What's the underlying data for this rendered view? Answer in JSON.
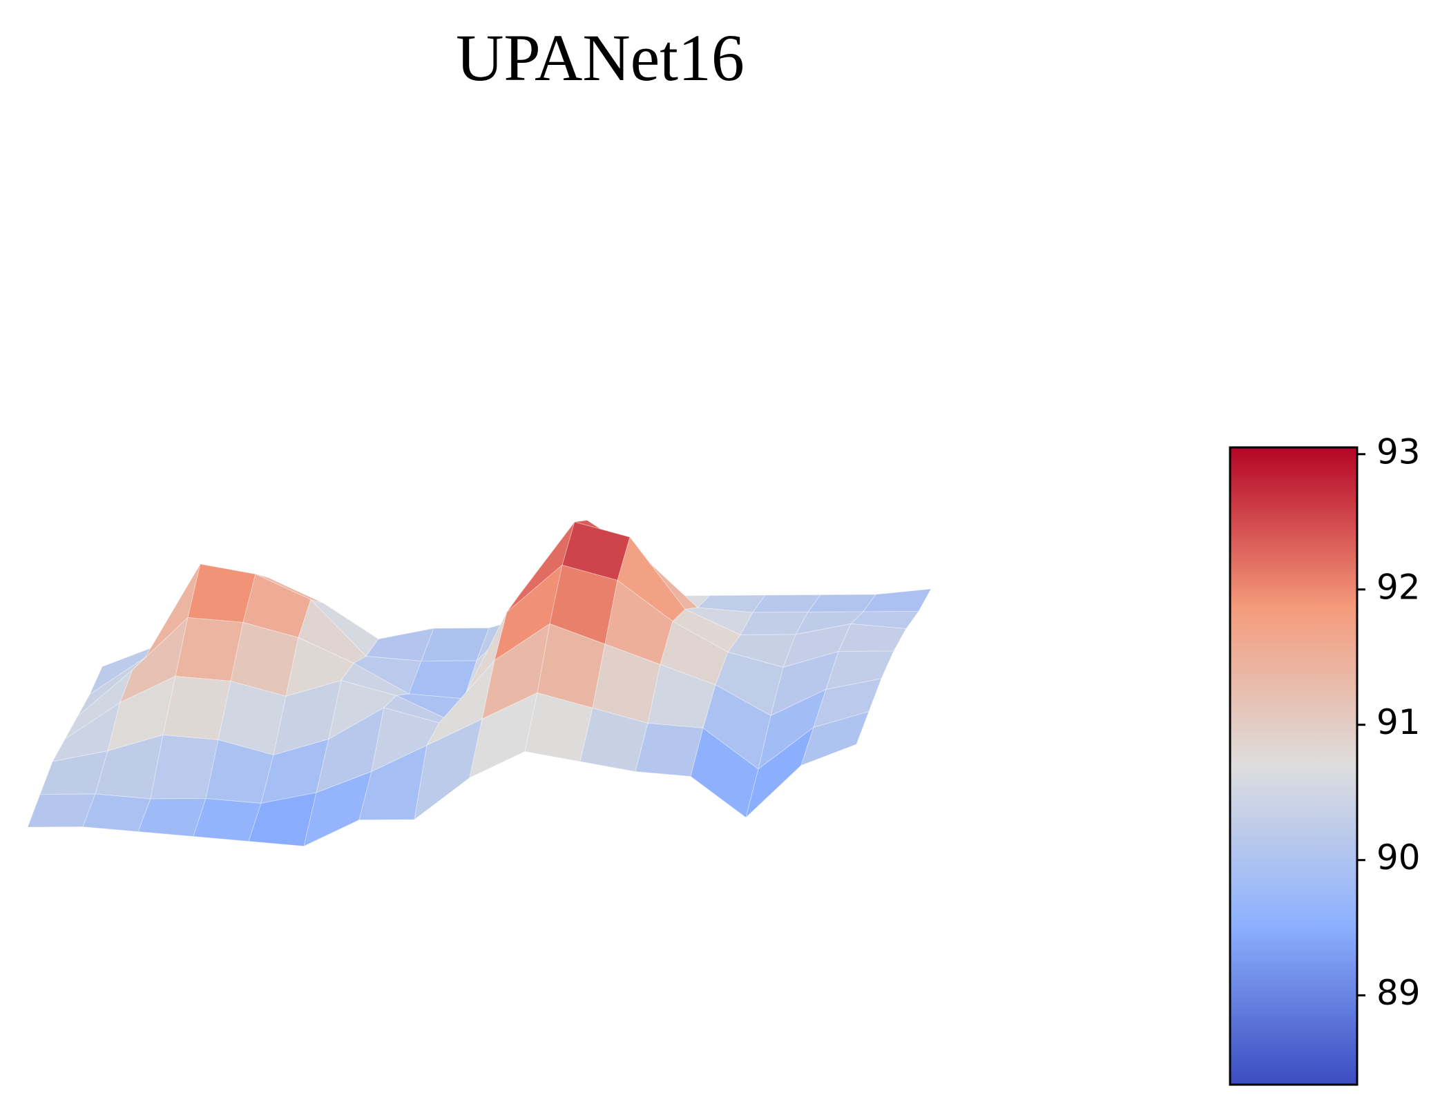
{
  "chart_data": {
    "type": "surface",
    "title": "UPANet16",
    "colormap": "coolwarm",
    "z": [
      [
        90.1,
        90.0,
        89.8,
        89.6,
        89.4,
        89.2,
        89.6,
        89.5,
        90.2,
        90.6,
        90.3,
        90.0,
        89.8,
        88.9,
        89.8,
        90.1
      ],
      [
        90.2,
        90.1,
        89.9,
        89.8,
        89.6,
        89.7,
        90.0,
        90.4,
        90.8,
        91.2,
        90.8,
        90.4,
        90.2,
        89.3,
        90.0,
        90.2
      ],
      [
        90.3,
        90.4,
        90.6,
        90.4,
        90.0,
        90.2,
        90.7,
        90.3,
        91.4,
        92.0,
        91.5,
        91.0,
        90.5,
        89.8,
        90.2,
        90.3
      ],
      [
        90.2,
        90.8,
        91.2,
        91.0,
        90.6,
        90.8,
        90.4,
        89.8,
        91.8,
        92.6,
        92.2,
        91.3,
        90.6,
        90.2,
        90.4,
        90.3
      ],
      [
        90.1,
        90.9,
        91.8,
        91.6,
        91.2,
        90.6,
        89.9,
        89.7,
        91.6,
        92.9,
        92.5,
        91.0,
        90.4,
        90.3,
        90.4,
        90.2
      ],
      [
        90.0,
        90.6,
        92.3,
        92.0,
        91.4,
        90.2,
        90.0,
        89.9,
        90.8,
        92.4,
        91.6,
        90.5,
        90.3,
        90.2,
        90.1,
        90.0
      ],
      [
        90.0,
        90.3,
        91.6,
        91.4,
        90.8,
        90.0,
        90.1,
        90.0,
        90.2,
        90.6,
        90.3,
        90.2,
        90.1,
        90.0,
        89.9,
        89.9
      ]
    ],
    "zlim": [
      88.34,
      93.05
    ],
    "zticks": [
      89,
      90,
      91,
      92,
      93
    ]
  }
}
